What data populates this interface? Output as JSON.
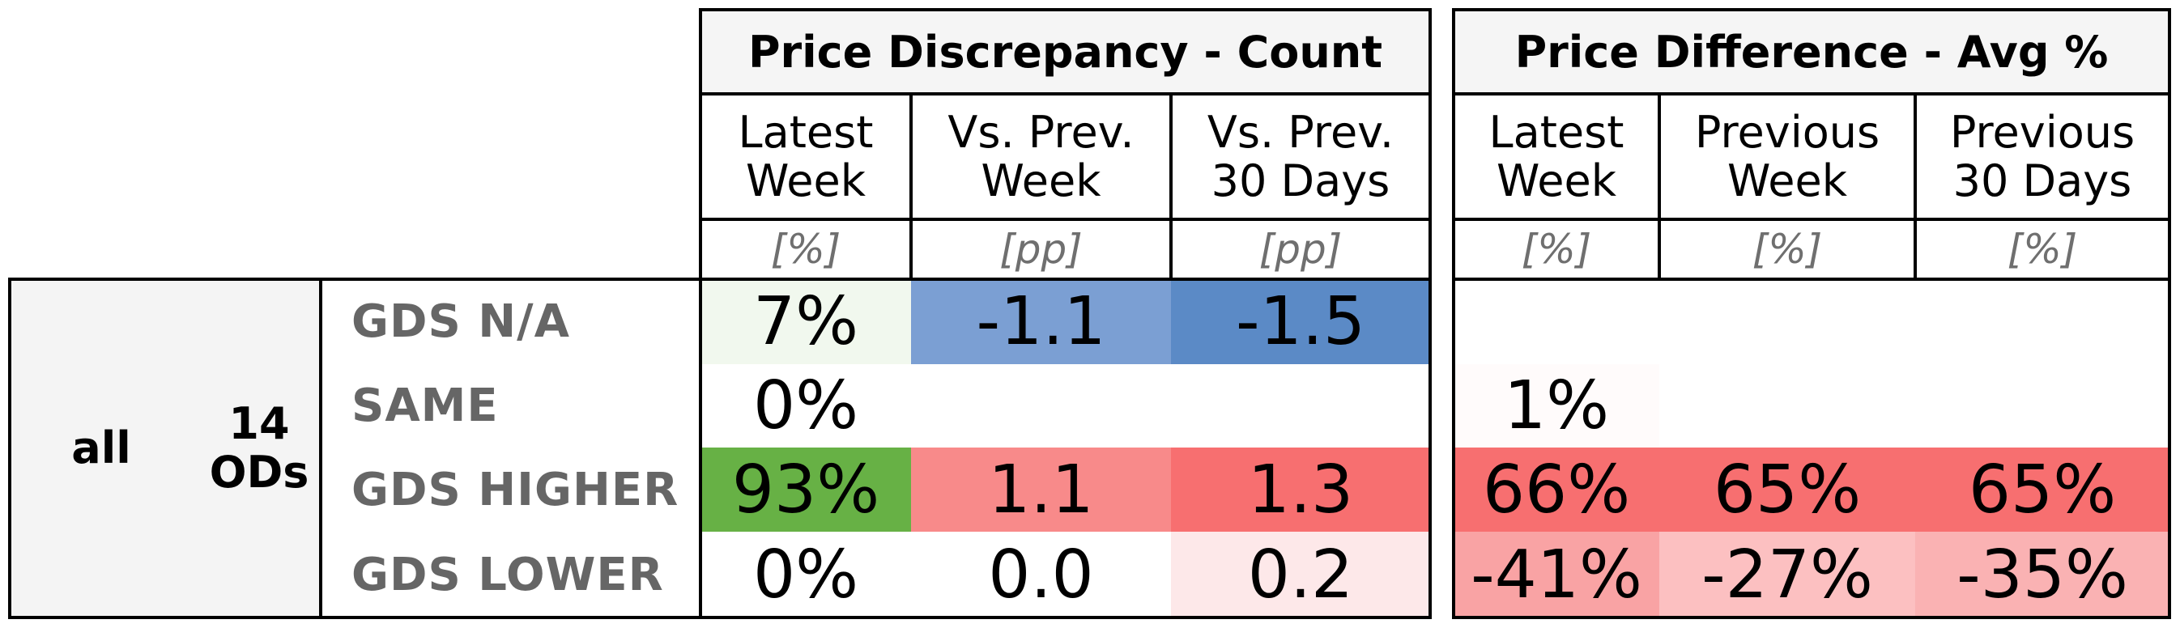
{
  "left_table": {
    "title": "Price Discrepancy - Count",
    "columns": [
      {
        "label": "Latest\nWeek",
        "unit": "[%]"
      },
      {
        "label": "Vs. Prev.\nWeek",
        "unit": "[pp]"
      },
      {
        "label": "Vs. Prev.\n30 Days",
        "unit": "[pp]"
      }
    ]
  },
  "right_table": {
    "title": "Price Difference - Avg %",
    "columns": [
      {
        "label": "Latest\nWeek",
        "unit": "[%]"
      },
      {
        "label": "Previous\nWeek",
        "unit": "[%]"
      },
      {
        "label": "Previous\n30 Days",
        "unit": "[%]"
      }
    ]
  },
  "group": {
    "label": "all",
    "sublabel": "14\nODs"
  },
  "rows": [
    {
      "label": "GDS N/A",
      "left": [
        {
          "v": "7%",
          "bg": "#f1f8ee"
        },
        {
          "v": "-1.1",
          "bg": "#7b9fd3"
        },
        {
          "v": "-1.5",
          "bg": "#5b8ac6"
        }
      ],
      "right": [
        {
          "v": "",
          "bg": "#ffffff"
        },
        {
          "v": "",
          "bg": "#ffffff"
        },
        {
          "v": "",
          "bg": "#ffffff"
        }
      ]
    },
    {
      "label": "SAME",
      "left": [
        {
          "v": "0%",
          "bg": "#ffffff"
        },
        {
          "v": "",
          "bg": "#ffffff"
        },
        {
          "v": "",
          "bg": "#ffffff"
        }
      ],
      "right": [
        {
          "v": "1%",
          "bg": "#fffbfb"
        },
        {
          "v": "",
          "bg": "#ffffff"
        },
        {
          "v": "",
          "bg": "#ffffff"
        }
      ]
    },
    {
      "label": "GDS HIGHER",
      "left": [
        {
          "v": "93%",
          "bg": "#67b145"
        },
        {
          "v": "1.1",
          "bg": "#f88a8a"
        },
        {
          "v": "1.3",
          "bg": "#f76f70"
        }
      ],
      "right": [
        {
          "v": "66%",
          "bg": "#f76f70"
        },
        {
          "v": "65%",
          "bg": "#f76f70"
        },
        {
          "v": "65%",
          "bg": "#f76f70"
        }
      ]
    },
    {
      "label": "GDS LOWER",
      "left": [
        {
          "v": "0%",
          "bg": "#ffffff"
        },
        {
          "v": "0.0",
          "bg": "#ffffff"
        },
        {
          "v": "0.2",
          "bg": "#fde8e9"
        }
      ],
      "right": [
        {
          "v": "-41%",
          "bg": "#f9a3a4"
        },
        {
          "v": "-27%",
          "bg": "#fcc0c1"
        },
        {
          "v": "-35%",
          "bg": "#fab2b3"
        }
      ]
    }
  ]
}
